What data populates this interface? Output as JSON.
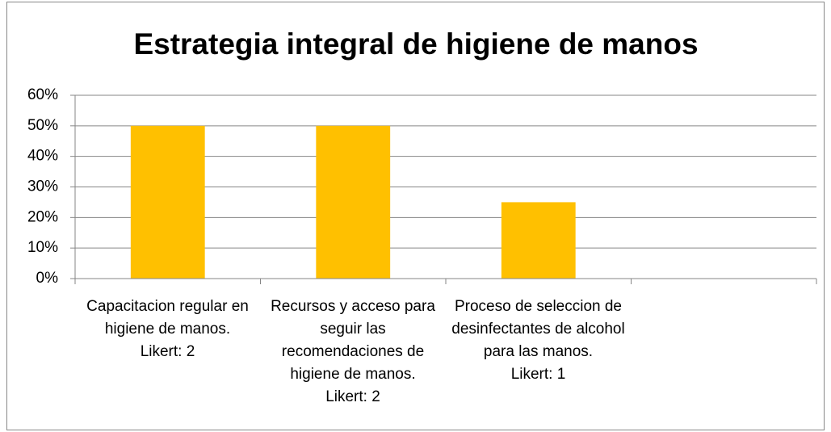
{
  "chart_data": {
    "type": "bar",
    "title": "Estrategia integral de higiene de manos",
    "categories": [
      "Capacitacion regular en higiene de manos.\nLikert: 2",
      "Recursos y acceso para seguir las recomendaciones de higiene de manos.\nLikert: 2",
      "Proceso de seleccion de desinfectantes de alcohol para las manos.\nLikert: 1",
      null
    ],
    "values": [
      50,
      50,
      25,
      null
    ],
    "color": "#ffc000",
    "ylim": [
      0,
      60
    ],
    "yticks": [
      {
        "value": 0,
        "label": "0%"
      },
      {
        "value": 10,
        "label": "10%"
      },
      {
        "value": 20,
        "label": "20%"
      },
      {
        "value": 30,
        "label": "30%"
      },
      {
        "value": 40,
        "label": "40%"
      },
      {
        "value": 50,
        "label": "50%"
      },
      {
        "value": 60,
        "label": "60%"
      }
    ],
    "grid": true
  }
}
